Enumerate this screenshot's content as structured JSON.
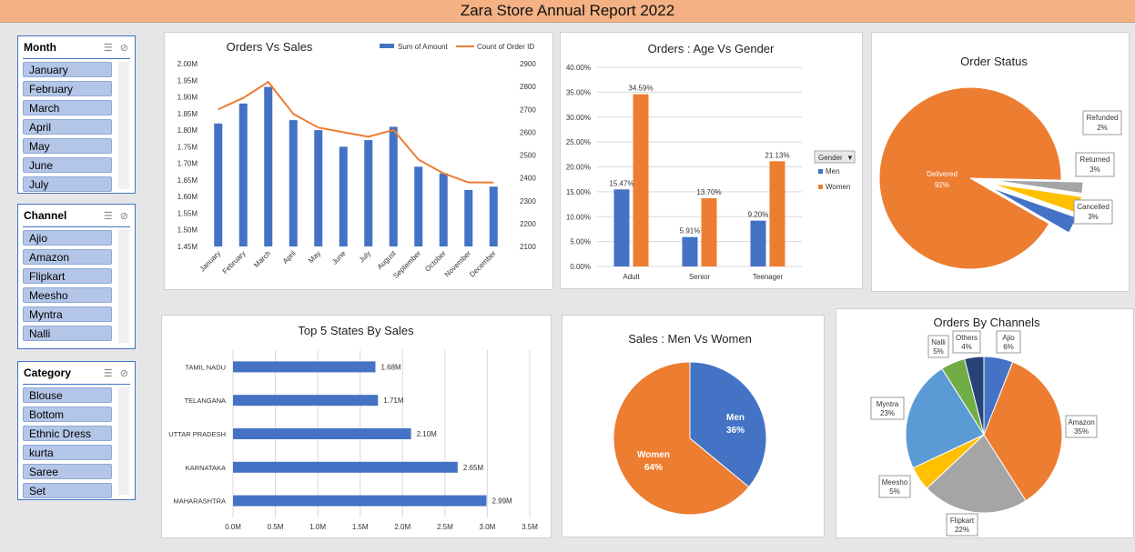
{
  "report_title": "Zara Store Annual Report 2022",
  "slicers": {
    "month": {
      "title": "Month",
      "items": [
        "January",
        "February",
        "March",
        "April",
        "May",
        "June",
        "July"
      ]
    },
    "channel": {
      "title": "Channel",
      "items": [
        "Ajio",
        "Amazon",
        "Flipkart",
        "Meesho",
        "Myntra",
        "Nalli"
      ]
    },
    "category": {
      "title": "Category",
      "items": [
        "Blouse",
        "Bottom",
        "Ethnic Dress",
        "kurta",
        "Saree",
        "Set"
      ]
    }
  },
  "colors": {
    "blue": "#4472c4",
    "orange": "#ed7d31",
    "gray": "#a5a5a5",
    "yellow": "#ffc000",
    "lightblue": "#5b9bd5",
    "green": "#70ad47",
    "navy": "#264478"
  },
  "chart_data": [
    {
      "id": "orders-vs-sales",
      "type": "bar",
      "title": "Orders Vs Sales",
      "categories": [
        "January",
        "February",
        "March",
        "April",
        "May",
        "June",
        "July",
        "August",
        "September",
        "October",
        "November",
        "December"
      ],
      "series": [
        {
          "name": "Sum of Amount",
          "type": "bar",
          "axis": "left",
          "values": [
            1.82,
            1.88,
            1.93,
            1.83,
            1.8,
            1.75,
            1.77,
            1.81,
            1.69,
            1.67,
            1.62,
            1.63
          ]
        },
        {
          "name": "Count of Order ID",
          "type": "line",
          "axis": "right",
          "values": [
            2700,
            2750,
            2820,
            2680,
            2620,
            2600,
            2580,
            2610,
            2480,
            2420,
            2380,
            2380
          ]
        }
      ],
      "y_left_ticks": [
        "2.00M",
        "1.95M",
        "1.90M",
        "1.85M",
        "1.80M",
        "1.75M",
        "1.70M",
        "1.65M",
        "1.60M",
        "1.55M",
        "1.50M",
        "1.45M"
      ],
      "y_right_ticks": [
        "2900",
        "2800",
        "2700",
        "2600",
        "2500",
        "2400",
        "2300",
        "2200",
        "2100"
      ],
      "ylim_left": [
        1.45,
        2.0
      ],
      "ylim_right": [
        2100,
        2900
      ]
    },
    {
      "id": "age-vs-gender",
      "type": "bar",
      "title": "Orders : Age Vs Gender",
      "categories": [
        "Adult",
        "Senior",
        "Teenager"
      ],
      "series": [
        {
          "name": "Men",
          "values": [
            15.47,
            5.91,
            9.2
          ],
          "labels": [
            "15.47%",
            "5.91%",
            "9.20%"
          ]
        },
        {
          "name": "Women",
          "values": [
            34.59,
            13.7,
            21.13
          ],
          "labels": [
            "34.59%",
            "13.70%",
            "21.13%"
          ]
        }
      ],
      "y_ticks": [
        "40.00%",
        "35.00%",
        "30.00%",
        "25.00%",
        "20.00%",
        "15.00%",
        "10.00%",
        "5.00%",
        "0.00%"
      ],
      "ylim": [
        0,
        40
      ],
      "legend_title": "Gender"
    },
    {
      "id": "order-status",
      "type": "pie",
      "title": "Order Status",
      "slices": [
        {
          "name": "Delivered",
          "value": 92,
          "label": "92%"
        },
        {
          "name": "Refunded",
          "value": 2,
          "label": "2%"
        },
        {
          "name": "Returned",
          "value": 3,
          "label": "3%"
        },
        {
          "name": "Cancelled",
          "value": 3,
          "label": "3%"
        }
      ]
    },
    {
      "id": "top-states",
      "type": "bar",
      "orientation": "horizontal",
      "title": "Top 5 States By Sales",
      "categories": [
        "TAMIL NADU",
        "TELANGANA",
        "UTTAR PRADESH",
        "KARNATAKA",
        "MAHARASHTRA"
      ],
      "values": [
        1.68,
        1.71,
        2.1,
        2.65,
        2.99
      ],
      "labels": [
        "1.68M",
        "1.71M",
        "2.10M",
        "2.65M",
        "2.99M"
      ],
      "x_ticks": [
        "0.0M",
        "0.5M",
        "1.0M",
        "1.5M",
        "2.0M",
        "2.5M",
        "3.0M",
        "3.5M"
      ],
      "xlim": [
        0,
        3.5
      ]
    },
    {
      "id": "men-vs-women",
      "type": "pie",
      "title": "Sales : Men Vs Women",
      "slices": [
        {
          "name": "Men",
          "value": 36,
          "label": "36%"
        },
        {
          "name": "Women",
          "value": 64,
          "label": "64%"
        }
      ]
    },
    {
      "id": "orders-by-channels",
      "type": "pie",
      "title": "Orders By Channels",
      "slices": [
        {
          "name": "Ajio",
          "value": 6,
          "label": "6%"
        },
        {
          "name": "Amazon",
          "value": 35,
          "label": "35%"
        },
        {
          "name": "Flipkart",
          "value": 22,
          "label": "22%"
        },
        {
          "name": "Meesho",
          "value": 5,
          "label": "5%"
        },
        {
          "name": "Myntra",
          "value": 23,
          "label": "23%"
        },
        {
          "name": "Nalli",
          "value": 5,
          "label": "5%"
        },
        {
          "name": "Others",
          "value": 4,
          "label": "4%"
        }
      ]
    }
  ]
}
